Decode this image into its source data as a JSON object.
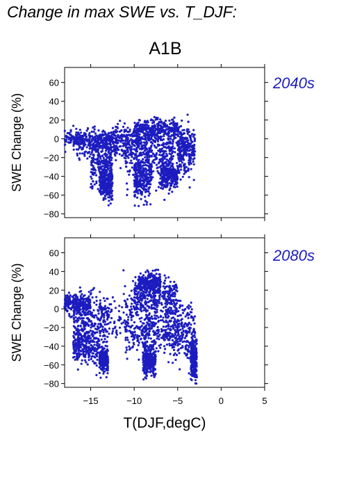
{
  "page_title": "Change in max SWE vs. T_DJF:",
  "scenario": "A1B",
  "chart_data": [
    {
      "type": "scatter",
      "panel_label": "2040s",
      "xlabel": "T(DJF,degC)",
      "ylabel": "SWE Change (%)",
      "xlim": [
        -18,
        5
      ],
      "ylim": [
        -84,
        76
      ],
      "xticks": [
        -15,
        -10,
        -5,
        0,
        5
      ],
      "yticks": [
        60,
        40,
        20,
        0,
        -20,
        -40,
        -60,
        -80
      ],
      "color": "#1c1cc0",
      "clusters": [
        {
          "x": [
            -18,
            -12
          ],
          "y_center": 0,
          "spread": 4
        },
        {
          "x": [
            -17,
            -8
          ],
          "y_center": -8,
          "spread": 8
        },
        {
          "x": [
            -15,
            -12.5
          ],
          "y_center": -28,
          "spread": 13
        },
        {
          "x": [
            -14,
            -12.5
          ],
          "y_center": -48,
          "spread": 8
        },
        {
          "x": [
            -12.5,
            -4.5
          ],
          "y_center": 0,
          "spread": 9
        },
        {
          "x": [
            -11,
            -5.5
          ],
          "y_center": -20,
          "spread": 12
        },
        {
          "x": [
            -10,
            -8
          ],
          "y_center": -42,
          "spread": 12
        },
        {
          "x": [
            -10,
            -5
          ],
          "y_center": 10,
          "spread": 5
        },
        {
          "x": [
            -5,
            -3
          ],
          "y_center": -12,
          "spread": 12
        },
        {
          "x": [
            -7,
            -5
          ],
          "y_center": -38,
          "spread": 8
        }
      ]
    },
    {
      "type": "scatter",
      "panel_label": "2080s",
      "xlabel": "T(DJF,degC)",
      "ylabel": "SWE Change (%)",
      "xlim": [
        -18,
        5
      ],
      "ylim": [
        -84,
        76
      ],
      "xticks": [
        -15,
        -10,
        -5,
        0,
        5
      ],
      "yticks": [
        60,
        40,
        20,
        0,
        -20,
        -40,
        -60,
        -80
      ],
      "color": "#1c1cc0",
      "clusters": [
        {
          "x": [
            -18,
            -15
          ],
          "y_center": 5,
          "spread": 5
        },
        {
          "x": [
            -17,
            -13
          ],
          "y_center": -15,
          "spread": 15
        },
        {
          "x": [
            -17,
            -14
          ],
          "y_center": -40,
          "spread": 10
        },
        {
          "x": [
            -14,
            -13
          ],
          "y_center": -55,
          "spread": 6
        },
        {
          "x": [
            -14,
            -5
          ],
          "y_center": -5,
          "spread": 14
        },
        {
          "x": [
            -11,
            -6
          ],
          "y_center": -25,
          "spread": 14
        },
        {
          "x": [
            -10,
            -5
          ],
          "y_center": 15,
          "spread": 8
        },
        {
          "x": [
            -9.5,
            -7
          ],
          "y_center": 28,
          "spread": 5
        },
        {
          "x": [
            -9,
            -7.5
          ],
          "y_center": -55,
          "spread": 8
        },
        {
          "x": [
            -6,
            -3
          ],
          "y_center": -25,
          "spread": 15
        },
        {
          "x": [
            -3.5,
            -2.8
          ],
          "y_center": -55,
          "spread": 10
        }
      ]
    }
  ]
}
